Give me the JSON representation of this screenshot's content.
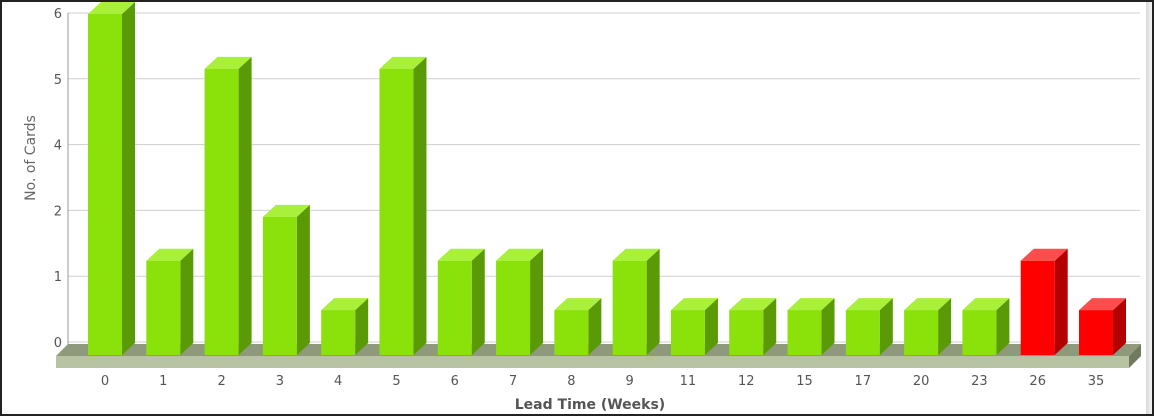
{
  "chart_data": {
    "type": "bar",
    "title": "",
    "xlabel": "Lead Time (Weeks)",
    "ylabel": "No. of Cards",
    "categories": [
      "0",
      "1",
      "2",
      "3",
      "4",
      "5",
      "6",
      "7",
      "8",
      "9",
      "11",
      "12",
      "15",
      "17",
      "20",
      "23",
      "26",
      "35"
    ],
    "values": [
      6,
      1.5,
      5,
      2.3,
      0.6,
      5,
      1.5,
      1.5,
      0.6,
      1.5,
      0.6,
      0.6,
      0.6,
      0.6,
      0.6,
      0.6,
      1.5,
      0.6
    ],
    "y_ticks": [
      "0",
      "1",
      "2",
      "4",
      "5",
      "6"
    ],
    "grid": true,
    "colors": {
      "normal_front": "#8ae20a",
      "normal_side": "#5a9a06",
      "normal_top": "#a8f03a",
      "highlight_front": "#ff0000",
      "highlight_side": "#b30000",
      "highlight_top": "#ff4d4d",
      "highlight_categories": [
        "26",
        "35"
      ]
    }
  }
}
